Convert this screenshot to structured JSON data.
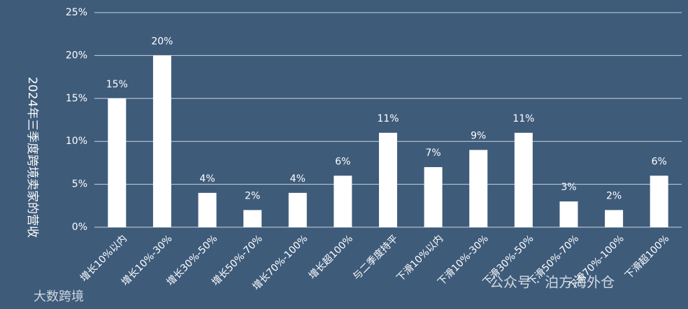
{
  "chart_data": {
    "type": "bar",
    "y_label": "2024年三季度跨境卖家的营收",
    "categories": [
      "增长10%以内",
      "增长10%-30%",
      "增长30%-50%",
      "增长50%-70%",
      "增长70%-100%",
      "增长超100%",
      "与二季度持平",
      "下滑10%以内",
      "下滑10%-30%",
      "下滑30%-50%",
      "下滑50%-70%",
      "下滑70%-100%",
      "下滑超100%"
    ],
    "values": [
      15,
      20,
      4,
      2,
      4,
      6,
      11,
      7,
      9,
      11,
      3,
      2,
      6
    ],
    "value_labels": [
      "15%",
      "20%",
      "4%",
      "2%",
      "4%",
      "6%",
      "11%",
      "7%",
      "9%",
      "11%",
      "3%",
      "2%",
      "6%"
    ],
    "color": "#ffffff",
    "ylim": [
      0,
      25
    ],
    "yticks": [
      {
        "value": 0,
        "label": "0%"
      },
      {
        "value": 5,
        "label": "5%"
      },
      {
        "value": 10,
        "label": "10%"
      },
      {
        "value": 15,
        "label": "15%"
      },
      {
        "value": 20,
        "label": "20%"
      },
      {
        "value": 25,
        "label": "25%"
      }
    ],
    "grid": true,
    "watermarks": [
      "公众号 · 泊方海外仓",
      "大数跨境"
    ]
  }
}
